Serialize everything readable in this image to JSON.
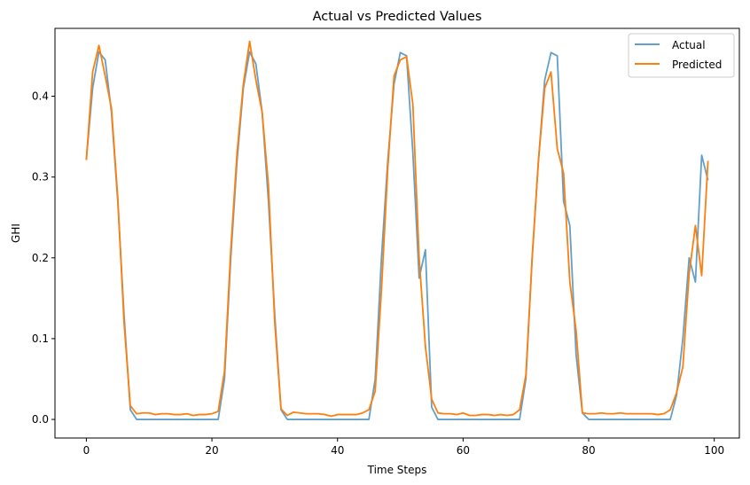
{
  "chart_data": {
    "type": "line",
    "title": "Actual vs Predicted Values",
    "xlabel": "Time Steps",
    "ylabel": "GHI",
    "xlim": [
      -5,
      104
    ],
    "ylim": [
      -0.023,
      0.484
    ],
    "xticks": [
      0,
      20,
      40,
      60,
      80,
      100
    ],
    "yticks": [
      0.0,
      0.1,
      0.2,
      0.3,
      0.4
    ],
    "grid": false,
    "legend": "top-right",
    "series": [
      {
        "name": "Actual",
        "color": "#1f77b4",
        "opacity": 0.7,
        "values": [
          0.322,
          0.41,
          0.455,
          0.445,
          0.38,
          0.27,
          0.13,
          0.012,
          0.0,
          0.0,
          0.0,
          0.0,
          0.0,
          0.0,
          0.0,
          0.0,
          0.0,
          0.0,
          0.0,
          0.0,
          0.0,
          0.0,
          0.05,
          0.2,
          0.32,
          0.41,
          0.455,
          0.44,
          0.38,
          0.27,
          0.13,
          0.012,
          0.0,
          0.0,
          0.0,
          0.0,
          0.0,
          0.0,
          0.0,
          0.0,
          0.0,
          0.0,
          0.0,
          0.0,
          0.0,
          0.0,
          0.05,
          0.2,
          0.32,
          0.415,
          0.454,
          0.45,
          0.33,
          0.175,
          0.21,
          0.015,
          0.0,
          0.0,
          0.0,
          0.0,
          0.0,
          0.0,
          0.0,
          0.0,
          0.0,
          0.0,
          0.0,
          0.0,
          0.0,
          0.0,
          0.05,
          0.2,
          0.32,
          0.42,
          0.454,
          0.45,
          0.27,
          0.24,
          0.08,
          0.008,
          0.0,
          0.0,
          0.0,
          0.0,
          0.0,
          0.0,
          0.0,
          0.0,
          0.0,
          0.0,
          0.0,
          0.0,
          0.0,
          0.0,
          0.03,
          0.1,
          0.2,
          0.17,
          0.327,
          0.296
        ]
      },
      {
        "name": "Predicted",
        "color": "#ff7f0e",
        "opacity": 1,
        "values": [
          0.321,
          0.43,
          0.463,
          0.425,
          0.385,
          0.275,
          0.12,
          0.017,
          0.007,
          0.008,
          0.008,
          0.006,
          0.007,
          0.007,
          0.006,
          0.006,
          0.007,
          0.005,
          0.006,
          0.006,
          0.007,
          0.01,
          0.06,
          0.21,
          0.33,
          0.415,
          0.468,
          0.42,
          0.38,
          0.29,
          0.12,
          0.013,
          0.005,
          0.009,
          0.008,
          0.007,
          0.007,
          0.007,
          0.006,
          0.004,
          0.006,
          0.006,
          0.006,
          0.006,
          0.008,
          0.012,
          0.035,
          0.16,
          0.31,
          0.425,
          0.445,
          0.449,
          0.39,
          0.2,
          0.09,
          0.025,
          0.008,
          0.007,
          0.007,
          0.006,
          0.008,
          0.005,
          0.005,
          0.006,
          0.006,
          0.005,
          0.006,
          0.005,
          0.006,
          0.012,
          0.055,
          0.2,
          0.32,
          0.41,
          0.43,
          0.335,
          0.305,
          0.17,
          0.11,
          0.008,
          0.007,
          0.007,
          0.008,
          0.007,
          0.007,
          0.008,
          0.007,
          0.007,
          0.007,
          0.007,
          0.007,
          0.006,
          0.007,
          0.012,
          0.033,
          0.065,
          0.18,
          0.24,
          0.178,
          0.32
        ]
      }
    ]
  }
}
